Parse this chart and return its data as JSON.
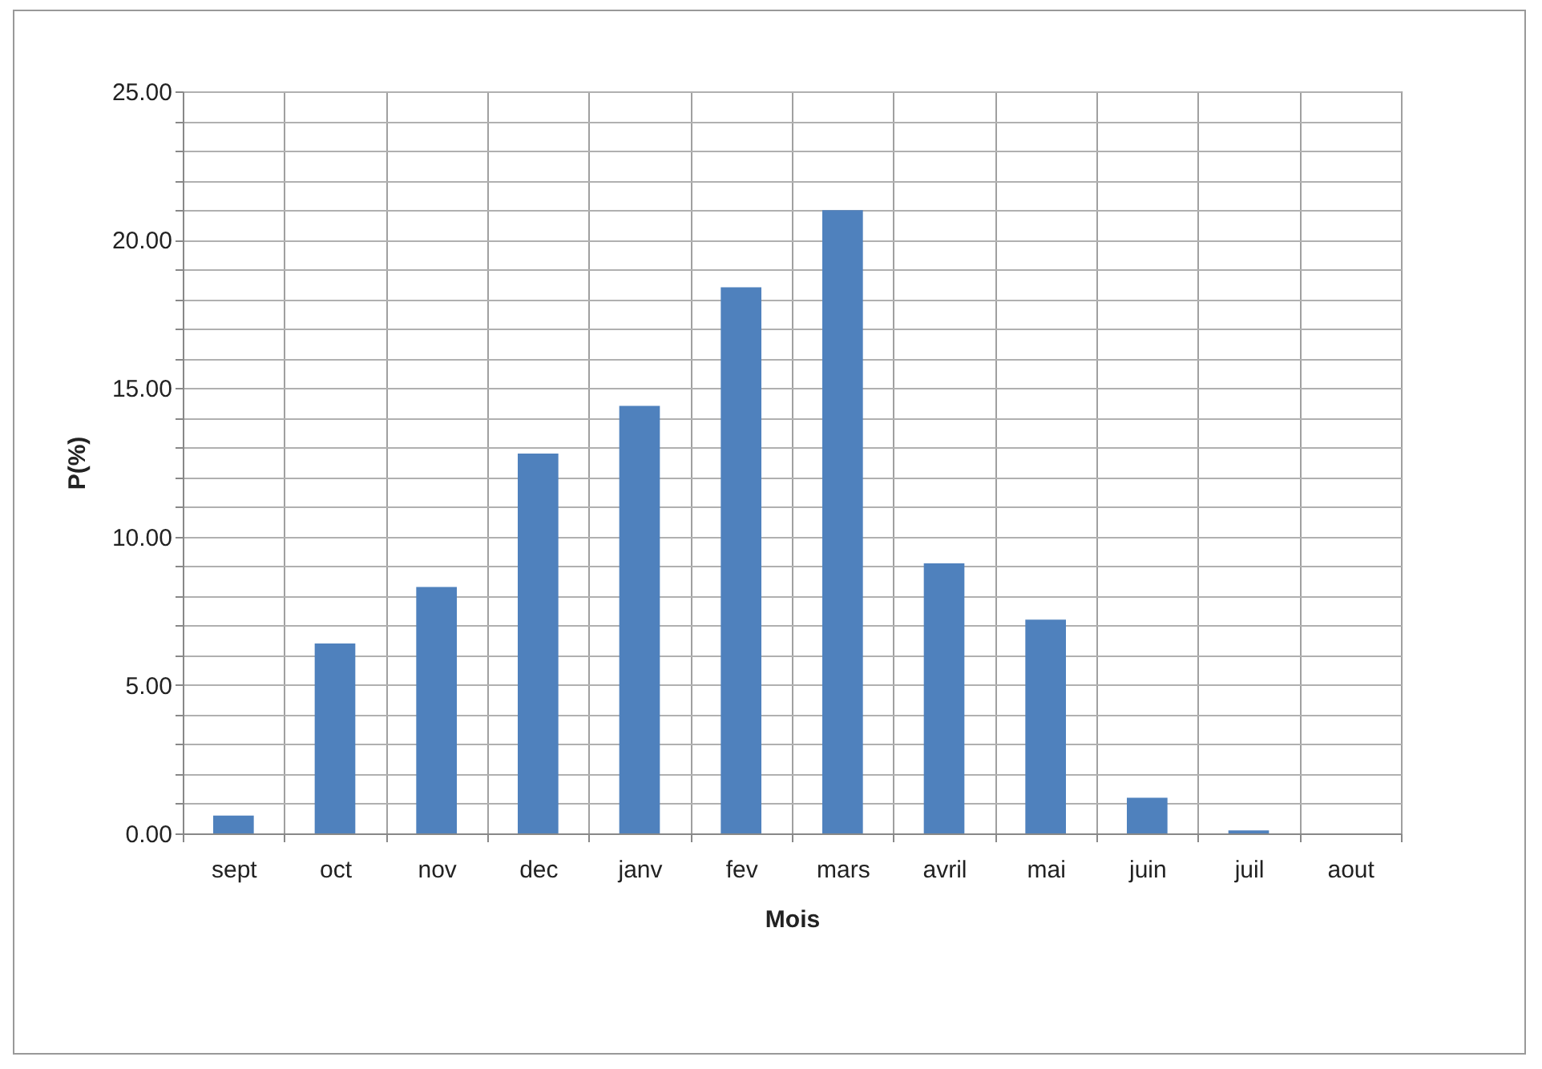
{
  "chart_data": {
    "type": "bar",
    "xlabel": "Mois",
    "ylabel": "P(%)",
    "categories": [
      "sept",
      "oct",
      "nov",
      "dec",
      "janv",
      "fev",
      "mars",
      "avril",
      "mai",
      "juin",
      "juil",
      "aout"
    ],
    "values": [
      0.6,
      6.4,
      8.3,
      12.8,
      14.4,
      18.4,
      21.0,
      9.1,
      7.2,
      1.2,
      0.1,
      0
    ],
    "color": "#4f81bd",
    "ylim": [
      0,
      25
    ],
    "yticks": [
      {
        "value": 0,
        "label": "0.00"
      },
      {
        "value": 1,
        "label": null
      },
      {
        "value": 2,
        "label": null
      },
      {
        "value": 3,
        "label": null
      },
      {
        "value": 4,
        "label": null
      },
      {
        "value": 5,
        "label": "5.00"
      },
      {
        "value": 6,
        "label": null
      },
      {
        "value": 7,
        "label": null
      },
      {
        "value": 8,
        "label": null
      },
      {
        "value": 9,
        "label": null
      },
      {
        "value": 10,
        "label": "10.00"
      },
      {
        "value": 11,
        "label": null
      },
      {
        "value": 12,
        "label": null
      },
      {
        "value": 13,
        "label": null
      },
      {
        "value": 14,
        "label": null
      },
      {
        "value": 15,
        "label": "15.00"
      },
      {
        "value": 16,
        "label": null
      },
      {
        "value": 17,
        "label": null
      },
      {
        "value": 18,
        "label": null
      },
      {
        "value": 19,
        "label": null
      },
      {
        "value": 20,
        "label": "20.00"
      },
      {
        "value": 21,
        "label": null
      },
      {
        "value": 22,
        "label": null
      },
      {
        "value": 23,
        "label": null
      },
      {
        "value": 24,
        "label": null
      },
      {
        "value": 25,
        "label": "25.00"
      }
    ],
    "grid": true
  }
}
